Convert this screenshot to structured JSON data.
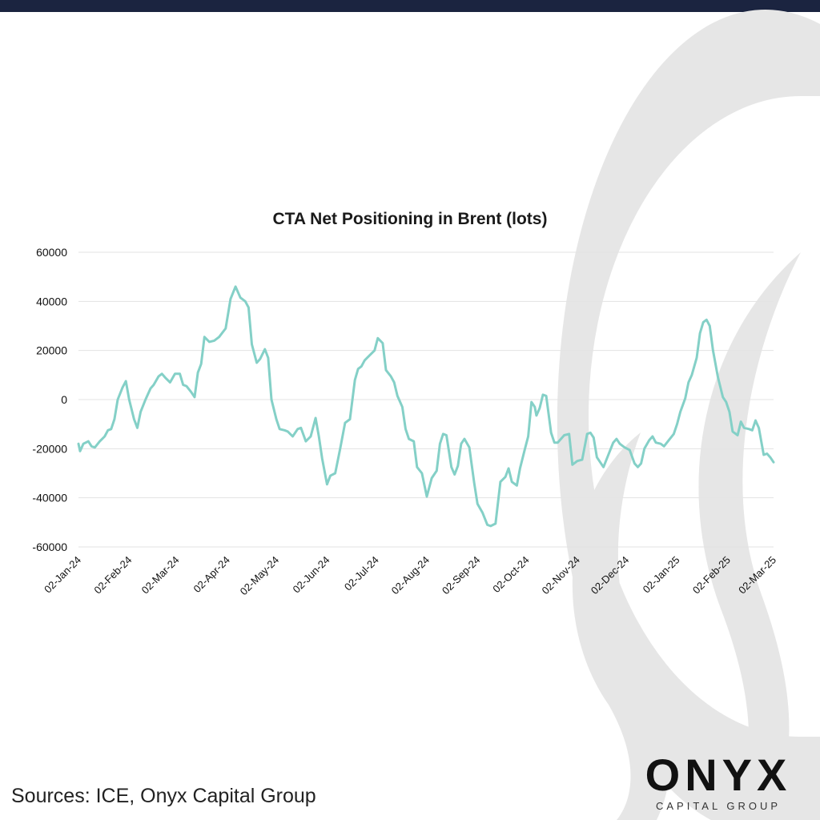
{
  "brand": {
    "name": "ONYX",
    "subtitle": "CAPITAL GROUP"
  },
  "sources": "Sources: ICE, Onyx Capital Group",
  "colors": {
    "line": "#84d0c7",
    "grid": "#e3e3e3",
    "top_bar": "#1b2440",
    "watermark": "#e6e6e6"
  },
  "chart_data": {
    "type": "line",
    "title": "CTA Net Positioning in Brent (lots)",
    "xlabel": "",
    "ylabel": "",
    "ylim": [
      -60000,
      60000
    ],
    "yticks": [
      60000,
      40000,
      20000,
      0,
      -20000,
      -40000,
      -60000
    ],
    "ytick_labels": [
      "60000",
      "40000",
      "20000",
      "0",
      "-20000",
      "-40000",
      "-60000"
    ],
    "x_tick_labels": [
      "02-Jan-24",
      "02-Feb-24",
      "02-Mar-24",
      "02-Apr-24",
      "02-May-24",
      "02-Jun-24",
      "02-Jul-24",
      "02-Aug-24",
      "02-Sep-24",
      "02-Oct-24",
      "02-Nov-24",
      "02-Dec-24",
      "02-Jan-25",
      "02-Feb-25",
      "02-Mar-25"
    ],
    "grid": true,
    "legend": "none",
    "series": [
      {
        "values": [
          [
            "2024-01-02",
            -18000
          ],
          [
            "2024-01-03",
            -21000
          ],
          [
            "2024-01-05",
            -18000
          ],
          [
            "2024-01-08",
            -17000
          ],
          [
            "2024-01-10",
            -19000
          ],
          [
            "2024-01-12",
            -19500
          ],
          [
            "2024-01-15",
            -17000
          ],
          [
            "2024-01-18",
            -15000
          ],
          [
            "2024-01-20",
            -12500
          ],
          [
            "2024-01-22",
            -12000
          ],
          [
            "2024-01-24",
            -8000
          ],
          [
            "2024-01-26",
            0
          ],
          [
            "2024-01-29",
            5000
          ],
          [
            "2024-01-31",
            7500
          ],
          [
            "2024-02-02",
            0
          ],
          [
            "2024-02-05",
            -8000
          ],
          [
            "2024-02-07",
            -11500
          ],
          [
            "2024-02-09",
            -5000
          ],
          [
            "2024-02-12",
            0
          ],
          [
            "2024-02-15",
            4500
          ],
          [
            "2024-02-17",
            6000
          ],
          [
            "2024-02-20",
            9500
          ],
          [
            "2024-02-22",
            10500
          ],
          [
            "2024-02-24",
            9000
          ],
          [
            "2024-02-27",
            7000
          ],
          [
            "2024-03-01",
            10500
          ],
          [
            "2024-03-04",
            10500
          ],
          [
            "2024-03-06",
            6000
          ],
          [
            "2024-03-08",
            5500
          ],
          [
            "2024-03-11",
            3000
          ],
          [
            "2024-03-13",
            1000
          ],
          [
            "2024-03-15",
            11000
          ],
          [
            "2024-03-17",
            14500
          ],
          [
            "2024-03-19",
            25500
          ],
          [
            "2024-03-22",
            23500
          ],
          [
            "2024-03-25",
            24000
          ],
          [
            "2024-03-28",
            25500
          ],
          [
            "2024-04-01",
            29000
          ],
          [
            "2024-04-04",
            41000
          ],
          [
            "2024-04-07",
            46000
          ],
          [
            "2024-04-10",
            41500
          ],
          [
            "2024-04-13",
            40000
          ],
          [
            "2024-04-15",
            37500
          ],
          [
            "2024-04-17",
            22500
          ],
          [
            "2024-04-20",
            15000
          ],
          [
            "2024-04-22",
            16500
          ],
          [
            "2024-04-25",
            20500
          ],
          [
            "2024-04-27",
            17000
          ],
          [
            "2024-04-29",
            0
          ],
          [
            "2024-05-02",
            -8000
          ],
          [
            "2024-05-04",
            -12000
          ],
          [
            "2024-05-07",
            -12500
          ],
          [
            "2024-05-09",
            -13000
          ],
          [
            "2024-05-12",
            -15000
          ],
          [
            "2024-05-15",
            -12000
          ],
          [
            "2024-05-17",
            -11500
          ],
          [
            "2024-05-20",
            -17000
          ],
          [
            "2024-05-23",
            -15000
          ],
          [
            "2024-05-26",
            -7500
          ],
          [
            "2024-05-28",
            -15000
          ],
          [
            "2024-05-30",
            -24000
          ],
          [
            "2024-06-02",
            -34500
          ],
          [
            "2024-06-04",
            -31000
          ],
          [
            "2024-06-07",
            -30000
          ],
          [
            "2024-06-10",
            -20000
          ],
          [
            "2024-06-13",
            -9500
          ],
          [
            "2024-06-16",
            -8000
          ],
          [
            "2024-06-19",
            8000
          ],
          [
            "2024-06-21",
            12500
          ],
          [
            "2024-06-23",
            13500
          ],
          [
            "2024-06-25",
            16000
          ],
          [
            "2024-06-28",
            18000
          ],
          [
            "2024-07-01",
            20000
          ],
          [
            "2024-07-03",
            25000
          ],
          [
            "2024-07-06",
            23000
          ],
          [
            "2024-07-08",
            12000
          ],
          [
            "2024-07-11",
            9500
          ],
          [
            "2024-07-13",
            7000
          ],
          [
            "2024-07-15",
            1500
          ],
          [
            "2024-07-18",
            -3000
          ],
          [
            "2024-07-20",
            -12000
          ],
          [
            "2024-07-22",
            -16000
          ],
          [
            "2024-07-25",
            -17000
          ],
          [
            "2024-07-27",
            -27500
          ],
          [
            "2024-07-30",
            -30000
          ],
          [
            "2024-08-02",
            -39500
          ],
          [
            "2024-08-05",
            -32000
          ],
          [
            "2024-08-08",
            -29000
          ],
          [
            "2024-08-10",
            -18000
          ],
          [
            "2024-08-12",
            -14000
          ],
          [
            "2024-08-14",
            -14500
          ],
          [
            "2024-08-17",
            -27500
          ],
          [
            "2024-08-19",
            -30500
          ],
          [
            "2024-08-21",
            -27000
          ],
          [
            "2024-08-23",
            -18000
          ],
          [
            "2024-08-25",
            -16000
          ],
          [
            "2024-08-28",
            -19500
          ],
          [
            "2024-08-31",
            -34000
          ],
          [
            "2024-09-02",
            -42500
          ],
          [
            "2024-09-05",
            -46000
          ],
          [
            "2024-09-08",
            -51000
          ],
          [
            "2024-09-10",
            -51500
          ],
          [
            "2024-09-13",
            -50500
          ],
          [
            "2024-09-16",
            -33500
          ],
          [
            "2024-09-19",
            -31500
          ],
          [
            "2024-09-21",
            -28000
          ],
          [
            "2024-09-23",
            -33500
          ],
          [
            "2024-09-26",
            -35000
          ],
          [
            "2024-09-28",
            -28000
          ],
          [
            "2024-10-01",
            -20000
          ],
          [
            "2024-10-03",
            -15000
          ],
          [
            "2024-10-05",
            -1000
          ],
          [
            "2024-10-07",
            -3000
          ],
          [
            "2024-10-08",
            -6500
          ],
          [
            "2024-10-10",
            -3500
          ],
          [
            "2024-10-12",
            2000
          ],
          [
            "2024-10-14",
            1500
          ],
          [
            "2024-10-17",
            -13500
          ],
          [
            "2024-10-19",
            -17500
          ],
          [
            "2024-10-21",
            -17500
          ],
          [
            "2024-10-23",
            -16000
          ],
          [
            "2024-10-25",
            -14500
          ],
          [
            "2024-10-28",
            -14000
          ],
          [
            "2024-10-30",
            -26500
          ],
          [
            "2024-11-02",
            -25000
          ],
          [
            "2024-11-05",
            -24500
          ],
          [
            "2024-11-08",
            -14000
          ],
          [
            "2024-11-10",
            -13500
          ],
          [
            "2024-11-12",
            -15500
          ],
          [
            "2024-11-14",
            -23500
          ],
          [
            "2024-11-16",
            -25500
          ],
          [
            "2024-11-18",
            -27500
          ],
          [
            "2024-11-21",
            -22500
          ],
          [
            "2024-11-24",
            -17500
          ],
          [
            "2024-11-26",
            -16000
          ],
          [
            "2024-11-28",
            -18000
          ],
          [
            "2024-12-01",
            -19500
          ],
          [
            "2024-12-04",
            -20500
          ],
          [
            "2024-12-07",
            -26000
          ],
          [
            "2024-12-09",
            -27500
          ],
          [
            "2024-12-11",
            -26000
          ],
          [
            "2024-12-13",
            -20000
          ],
          [
            "2024-12-16",
            -16500
          ],
          [
            "2024-12-18",
            -15000
          ],
          [
            "2024-12-20",
            -17500
          ],
          [
            "2024-12-23",
            -18000
          ],
          [
            "2024-12-25",
            -19000
          ],
          [
            "2024-12-28",
            -16500
          ],
          [
            "2024-12-31",
            -14000
          ],
          [
            "2025-01-02",
            -10000
          ],
          [
            "2025-01-04",
            -5000
          ],
          [
            "2025-01-07",
            500
          ],
          [
            "2025-01-09",
            7000
          ],
          [
            "2025-01-11",
            10000
          ],
          [
            "2025-01-14",
            17000
          ],
          [
            "2025-01-16",
            27000
          ],
          [
            "2025-01-18",
            31500
          ],
          [
            "2025-01-20",
            32500
          ],
          [
            "2025-01-22",
            30000
          ],
          [
            "2025-01-24",
            20000
          ],
          [
            "2025-01-27",
            9000
          ],
          [
            "2025-01-30",
            1000
          ],
          [
            "2025-02-01",
            -1000
          ],
          [
            "2025-02-03",
            -5000
          ],
          [
            "2025-02-05",
            -13000
          ],
          [
            "2025-02-08",
            -14500
          ],
          [
            "2025-02-10",
            -9000
          ],
          [
            "2025-02-12",
            -11500
          ],
          [
            "2025-02-15",
            -12000
          ],
          [
            "2025-02-17",
            -12500
          ],
          [
            "2025-02-19",
            -8500
          ],
          [
            "2025-02-21",
            -11500
          ],
          [
            "2025-02-24",
            -22500
          ],
          [
            "2025-02-26",
            -22000
          ],
          [
            "2025-02-28",
            -23500
          ],
          [
            "2025-03-02",
            -25500
          ]
        ]
      }
    ]
  }
}
